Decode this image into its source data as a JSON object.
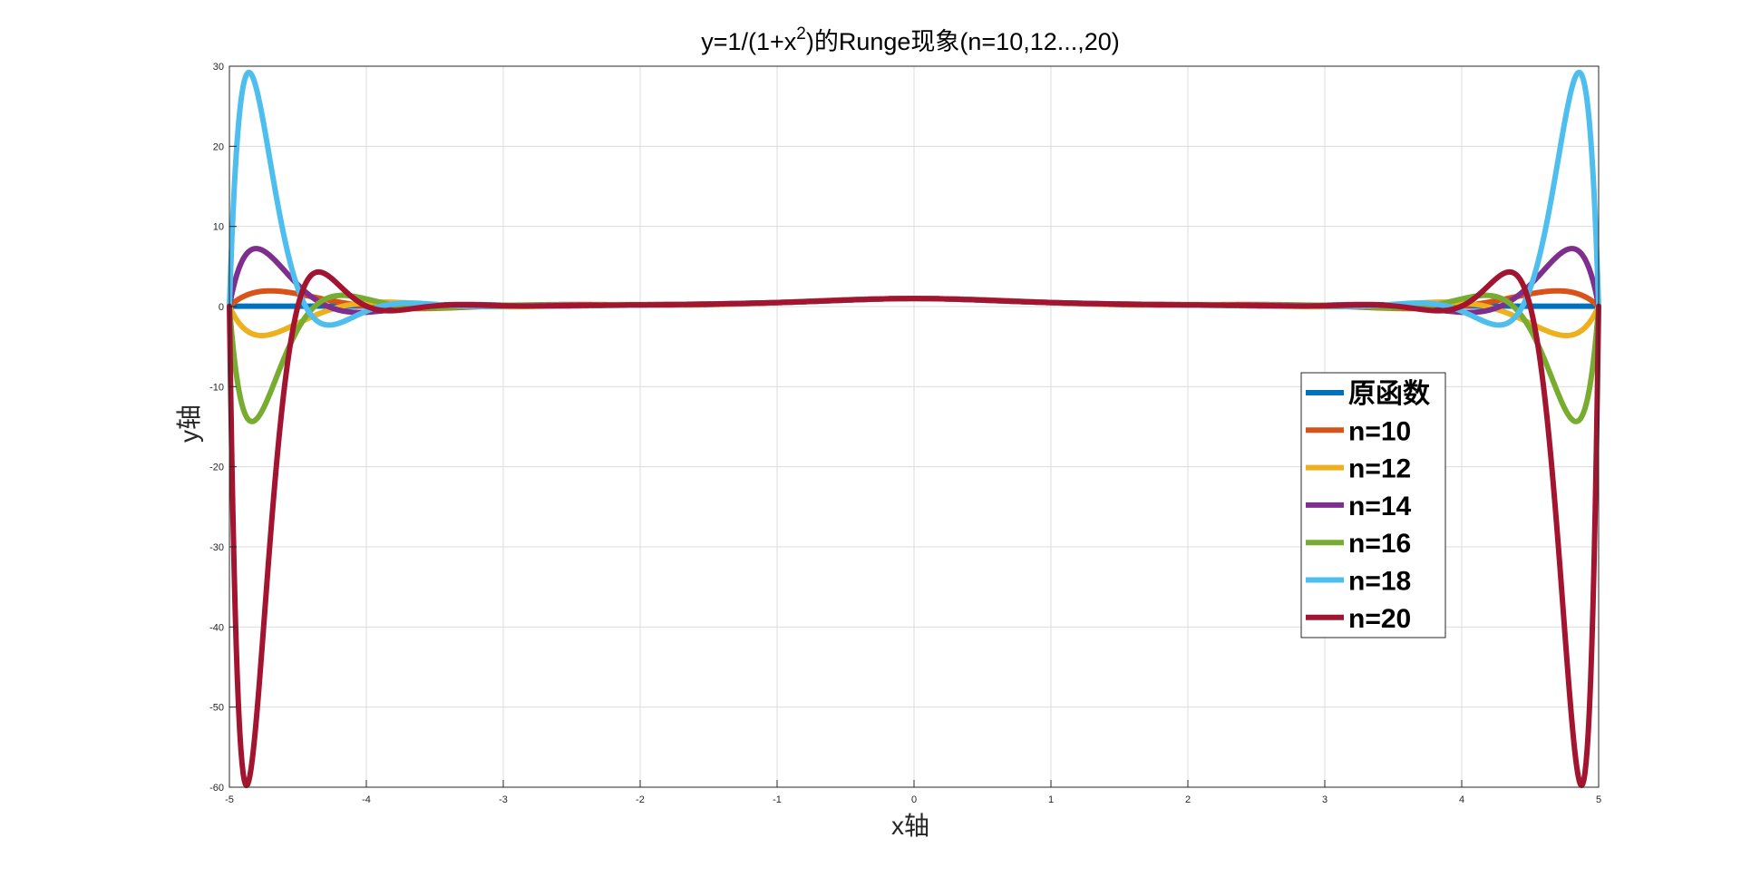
{
  "chart_data": {
    "type": "line",
    "title": "y=1/(1+x",
    "title_superscript": "2",
    "title_suffix": ")的Runge现象(n=10,12...,20)",
    "xlabel": "x轴",
    "ylabel": "y轴",
    "xlim": [
      -5,
      5
    ],
    "ylim": [
      -60,
      30
    ],
    "x_ticks": [
      -5,
      -4,
      -3,
      -2,
      -1,
      0,
      1,
      2,
      3,
      4,
      5
    ],
    "y_ticks": [
      -60,
      -50,
      -40,
      -30,
      -20,
      -10,
      0,
      10,
      20,
      30
    ],
    "grid": true,
    "legend_position": "right",
    "function": "1/(1+x^2)",
    "interpolation_nodes": "equally spaced, n+1 nodes on [-5, 5]",
    "series": [
      {
        "name": "原函数",
        "n": null,
        "color": "#0072BD"
      },
      {
        "name": "n=10",
        "n": 10,
        "color": "#D95319"
      },
      {
        "name": "n=12",
        "n": 12,
        "color": "#EDB120"
      },
      {
        "name": "n=14",
        "n": 14,
        "color": "#7E2F8E"
      },
      {
        "name": "n=16",
        "n": 16,
        "color": "#77AC30"
      },
      {
        "name": "n=18",
        "n": 18,
        "color": "#4DBEEE"
      },
      {
        "name": "n=20",
        "n": 20,
        "color": "#A2142F"
      }
    ]
  }
}
